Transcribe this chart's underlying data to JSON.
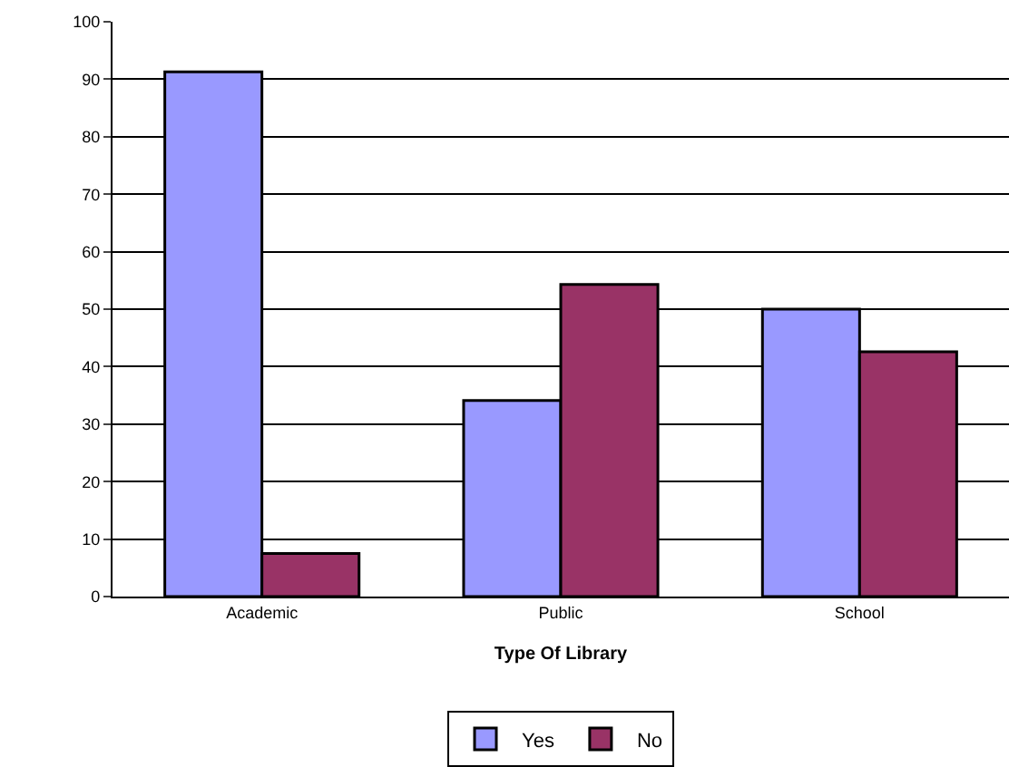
{
  "chart_data": {
    "type": "bar",
    "xlabel": "Type Of Library",
    "categories": [
      "Academic",
      "Public",
      "School"
    ],
    "series": [
      {
        "name": "Yes",
        "color": "#9999ff",
        "values": [
          91.3,
          34.1,
          50
        ]
      },
      {
        "name": "No",
        "color": "#993366",
        "values": [
          7.5,
          54.3,
          42.6
        ]
      }
    ],
    "ylim": [
      0,
      100
    ],
    "yticks": [
      0,
      10,
      20,
      30,
      40,
      50,
      60,
      70,
      80,
      90,
      100
    ],
    "grid": "y",
    "legend": "bottom"
  }
}
